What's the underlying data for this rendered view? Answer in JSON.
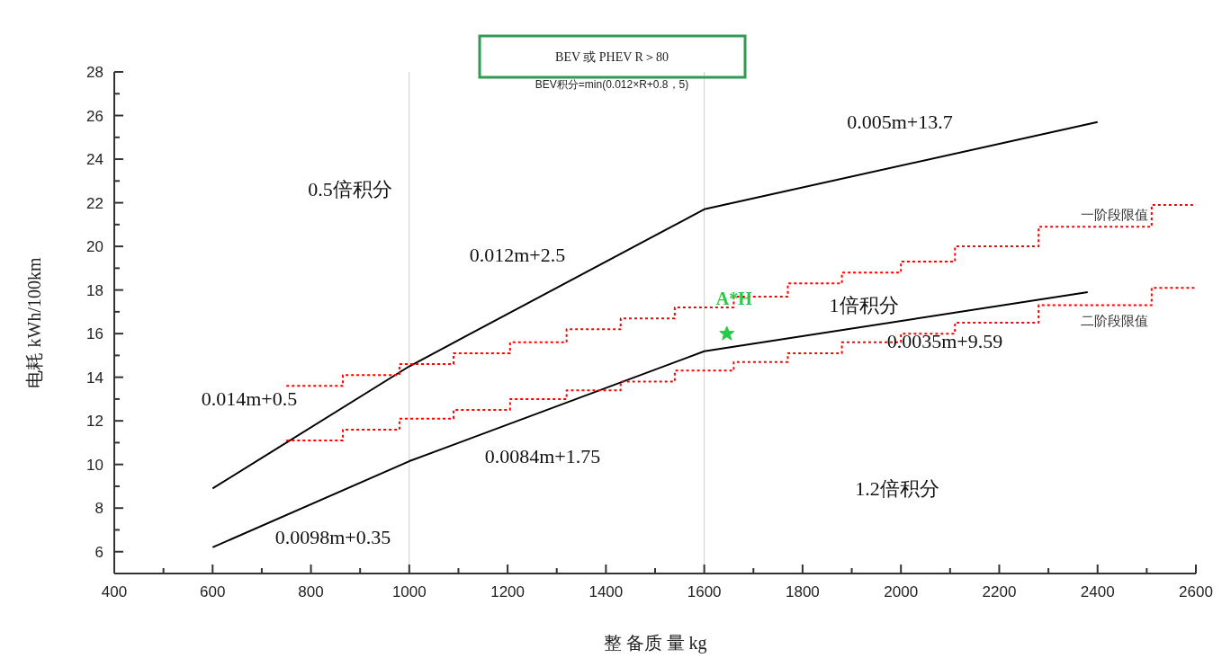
{
  "chart_data": {
    "type": "line",
    "title": "BEV 或 PHEV R＞80",
    "subtitle": "BEV积分=min(0.012×R+0.8，5)",
    "xlabel": "整 备质 量 kg",
    "ylabel": "电耗 kWh/100km",
    "xlim": [
      400,
      2600
    ],
    "ylim": [
      5,
      28
    ],
    "xticks": [
      400,
      {
        "value": 500,
        "label": null
      },
      600,
      {
        "value": 700,
        "label": null
      },
      800,
      {
        "value": 900,
        "label": null
      },
      1000,
      {
        "value": 1100,
        "label": null
      },
      1200,
      {
        "value": 1300,
        "label": null
      },
      1400,
      {
        "value": 1500,
        "label": null
      },
      1600,
      {
        "value": 1700,
        "label": null
      },
      1800,
      {
        "value": 1900,
        "label": null
      },
      2000,
      {
        "value": 2100,
        "label": null
      },
      2200,
      {
        "value": 2300,
        "label": null
      },
      2400,
      {
        "value": 2500,
        "label": null
      },
      2600
    ],
    "yticks": [
      6,
      {
        "value": 7,
        "label": null
      },
      8,
      {
        "value": 9,
        "label": null
      },
      10,
      {
        "value": 11,
        "label": null
      },
      12,
      {
        "value": 13,
        "label": null
      },
      14,
      {
        "value": 15,
        "label": null
      },
      16,
      {
        "value": 17,
        "label": null
      },
      18,
      {
        "value": 19,
        "label": null
      },
      20,
      {
        "value": 21,
        "label": null
      },
      22,
      {
        "value": 23,
        "label": null
      },
      24,
      {
        "value": 25,
        "label": null
      },
      26,
      {
        "value": 27,
        "label": null
      },
      28
    ],
    "grid": false,
    "legend": false,
    "line_style": "solid",
    "marker": "none",
    "series": [
      {
        "color": "#000000",
        "x": [
          600,
          1000,
          1600,
          2400
        ],
        "values": [
          8.9,
          14.5,
          21.7,
          25.7
        ]
      },
      {
        "color": "#000000",
        "x": [
          600,
          1000,
          1600,
          2380
        ],
        "values": [
          6.2,
          10.15,
          15.19,
          17.9
        ]
      },
      {
        "name": "一阶段限值",
        "type": "step",
        "line_style": "dotted",
        "color": "#ff0000",
        "x": [
          750,
          865,
          980,
          1090,
          1205,
          1320,
          1430,
          1540,
          1660,
          1770,
          1880,
          2000,
          2110,
          2280,
          2510,
          2600
        ],
        "values": [
          13.6,
          14.1,
          14.6,
          15.1,
          15.6,
          16.2,
          16.7,
          17.2,
          17.7,
          18.3,
          18.8,
          19.3,
          20.0,
          20.9,
          21.9,
          21.9
        ]
      },
      {
        "name": "二阶段限值",
        "type": "step",
        "line_style": "dotted",
        "color": "#ff0000",
        "x": [
          750,
          865,
          980,
          1090,
          1205,
          1320,
          1430,
          1540,
          1660,
          1770,
          1880,
          2000,
          2110,
          2280,
          2510,
          2600
        ],
        "values": [
          11.1,
          11.6,
          12.1,
          12.5,
          13.0,
          13.4,
          13.8,
          14.3,
          14.7,
          15.1,
          15.6,
          16.0,
          16.5,
          17.3,
          18.1,
          18.1
        ]
      },
      {
        "name": "A*H",
        "type": "scatter",
        "marker": "star",
        "color": "#22cc44",
        "x": [
          1646
        ],
        "values": [
          16.0
        ]
      }
    ],
    "ref_lines": [
      {
        "axis": "x",
        "value": 1000,
        "color": "#cccccc"
      },
      {
        "axis": "x",
        "value": 1600,
        "color": "#cccccc"
      }
    ],
    "annotations": [
      "0.014m+0.5",
      "0.012m+2.5",
      "0.005m+13.7",
      "0.0084m+1.75",
      "0.0098m+0.35",
      "0.0035m+9.59",
      "0.5倍积分",
      "1倍积分",
      "1.2倍积分"
    ]
  }
}
